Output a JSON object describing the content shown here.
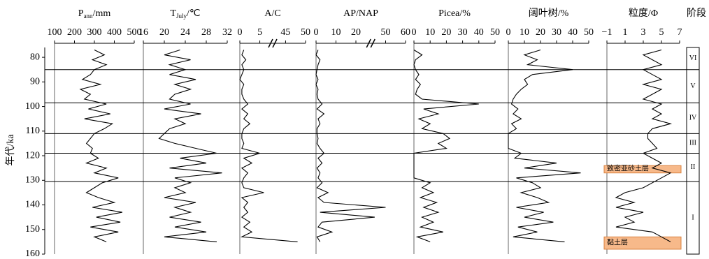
{
  "chart_data": {
    "type": "line",
    "y_label": "年代/ka",
    "ylim": [
      76,
      160
    ],
    "yticks": [
      80,
      90,
      100,
      110,
      120,
      130,
      140,
      150,
      160
    ],
    "ages": [
      77,
      79,
      81,
      83,
      85,
      87,
      89,
      91,
      93,
      95,
      97,
      99,
      101,
      103,
      105,
      107,
      109,
      111,
      113,
      115,
      117,
      119,
      121,
      123,
      125,
      127,
      129,
      131,
      133,
      135,
      137,
      139,
      141,
      143,
      145,
      147,
      149,
      151,
      153,
      155
    ],
    "color": "#000000",
    "panels": [
      {
        "title": "P",
        "title_sub": "ann",
        "title_unit": "/mm",
        "xlim": [
          100,
          500
        ],
        "xticks": [
          100,
          200,
          300,
          400,
          500
        ],
        "values": [
          300,
          350,
          290,
          360,
          300,
          280,
          240,
          330,
          230,
          280,
          250,
          360,
          270,
          380,
          250,
          390,
          350,
          300,
          280,
          260,
          290,
          280,
          320,
          260,
          360,
          300,
          420,
          340,
          300,
          260,
          320,
          400,
          290,
          440,
          310,
          430,
          280,
          420,
          300,
          360
        ]
      },
      {
        "title": "T",
        "title_sub": "July",
        "title_unit": "/℃",
        "xlim": [
          16,
          32
        ],
        "xticks": [
          16,
          20,
          24,
          28,
          32
        ],
        "values": [
          23,
          20,
          25,
          21,
          24,
          21,
          26,
          22,
          25,
          22,
          21,
          25,
          20,
          27,
          22,
          24,
          21,
          20,
          19,
          22,
          26,
          30,
          23,
          28,
          21,
          31,
          22,
          25,
          22,
          24,
          20,
          26,
          22,
          25,
          21,
          27,
          22,
          28,
          20,
          30
        ]
      },
      {
        "title": "A/C",
        "xlim": [
          0,
          50
        ],
        "x_break": [
          7,
          43
        ],
        "xticks": [
          0,
          5,
          45,
          50
        ],
        "values": [
          1,
          0.5,
          1.5,
          0.5,
          1,
          0.5,
          0,
          1,
          0.5,
          0.5,
          1,
          2,
          0.5,
          2,
          1,
          2.5,
          1,
          0.5,
          0.5,
          1,
          0.5,
          5,
          1,
          3,
          0.5,
          2,
          1,
          0.5,
          1,
          6,
          0.5,
          2,
          1,
          2,
          0.5,
          2.5,
          1,
          3,
          0.5,
          48
        ]
      },
      {
        "title": "AP/NAP",
        "xlim": [
          0,
          60
        ],
        "x_break": [
          25,
          45
        ],
        "xticks": [
          0,
          10,
          20,
          50,
          60
        ],
        "values": [
          1,
          0,
          2,
          1,
          0.5,
          0,
          1,
          0,
          1,
          0.5,
          1,
          3,
          0.5,
          4,
          1,
          2,
          0.5,
          0.5,
          1,
          0.5,
          2,
          4,
          1,
          3,
          0.5,
          2,
          1,
          3,
          0.5,
          6,
          1,
          4,
          50,
          2,
          43,
          3,
          1,
          8,
          0.5,
          2
        ]
      },
      {
        "title": "Picea/%",
        "xlim": [
          0,
          50
        ],
        "xticks": [
          0,
          10,
          20,
          30,
          40,
          50
        ],
        "values": [
          0,
          5,
          1,
          0,
          1,
          3,
          1,
          4,
          2,
          1,
          5,
          40,
          6,
          15,
          3,
          10,
          5,
          18,
          22,
          15,
          20,
          0,
          0,
          0,
          0,
          0,
          0,
          10,
          5,
          12,
          4,
          14,
          6,
          15,
          5,
          12,
          4,
          18,
          2,
          10
        ]
      },
      {
        "title": "阔叶树/%",
        "xlim": [
          0,
          50
        ],
        "xticks": [
          0,
          10,
          20,
          30,
          40,
          50
        ],
        "values": [
          20,
          10,
          18,
          12,
          40,
          15,
          10,
          12,
          8,
          5,
          3,
          2,
          6,
          3,
          8,
          2,
          5,
          0,
          0,
          0,
          0,
          8,
          4,
          30,
          10,
          45,
          5,
          15,
          20,
          8,
          18,
          25,
          5,
          22,
          10,
          28,
          6,
          18,
          3,
          35
        ]
      },
      {
        "title": "粒度/Φ",
        "xlim": [
          -1,
          7
        ],
        "xticks": [
          {
            "value": -1,
            "label": "−1"
          },
          1,
          3,
          5,
          7
        ],
        "values": [
          5,
          3,
          4,
          5,
          3,
          4,
          5,
          3,
          5,
          4,
          3,
          5,
          4,
          5,
          4,
          6,
          4,
          3.5,
          3.5,
          4,
          4.5,
          3,
          4,
          5,
          4,
          6,
          5,
          4,
          3,
          1,
          0,
          2,
          0,
          3,
          1,
          2,
          0,
          4,
          5,
          6
        ],
        "layers": [
          {
            "label": "致密亚砂土层",
            "top": 124,
            "bottom": 127
          },
          {
            "label": "黏土层",
            "top": 153,
            "bottom": 158
          }
        ],
        "layer_color": "#f7b98a"
      }
    ],
    "stage_title": "阶段",
    "stage_boundaries": [
      85,
      98.5,
      111,
      119,
      130.5
    ],
    "stages": [
      "VI",
      "V",
      "IV",
      "III",
      "II",
      "I"
    ]
  }
}
